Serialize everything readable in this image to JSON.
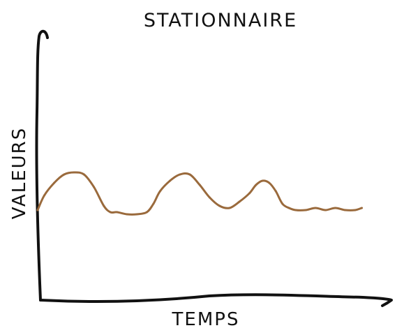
{
  "chart_data": {
    "type": "line",
    "title": "STATIONNAIRE",
    "xlabel": "TEMPS",
    "ylabel": "VALEURS",
    "xlim": [
      0,
      100
    ],
    "ylim": [
      0,
      100
    ],
    "grid": false,
    "legend": "none",
    "series": [
      {
        "color": "#9a6a3c",
        "x": [
          0,
          2,
          5,
          8,
          11,
          14,
          17,
          20,
          22,
          24,
          27,
          30,
          33,
          35,
          37,
          40,
          43,
          46,
          49,
          52,
          55,
          58,
          61,
          64,
          66,
          68,
          70,
          72,
          74,
          76,
          78,
          81,
          84,
          87,
          90,
          93,
          96,
          98
        ],
        "values": [
          43,
          50,
          56,
          60,
          61,
          60,
          54,
          45,
          42,
          42,
          41,
          41,
          42,
          46,
          52,
          57,
          60,
          60,
          55,
          49,
          45,
          44,
          47,
          51,
          55,
          57,
          56,
          52,
          46,
          44,
          43,
          43,
          44,
          43,
          44,
          43,
          43,
          44
        ]
      }
    ]
  }
}
